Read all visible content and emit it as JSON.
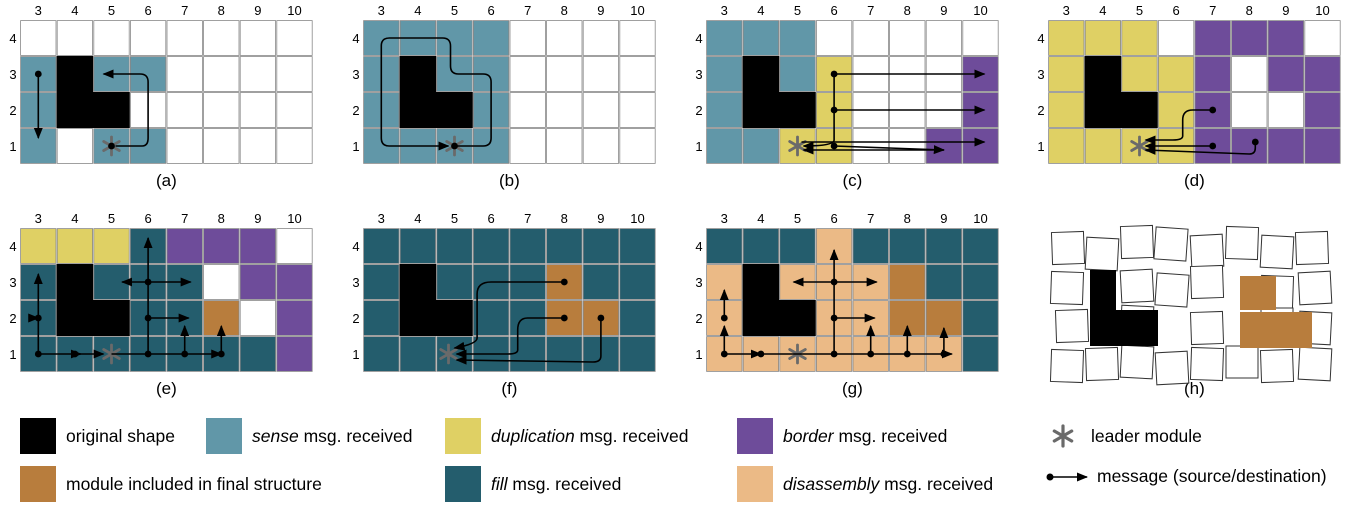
{
  "colors": {
    "original": "#000000",
    "sense": "#6197A8",
    "duplication": "#DFD064",
    "border": "#6E4C9A",
    "final": "#B87D3D",
    "fill": "#245D6D",
    "disassembly": "#EBBA86",
    "empty": "#FFFFFF",
    "leader": "#6a6a6a"
  },
  "col_labels": [
    "3",
    "4",
    "5",
    "6",
    "7",
    "8",
    "9",
    "10"
  ],
  "row_labels": [
    "4",
    "3",
    "2",
    "1"
  ],
  "panels": [
    {
      "caption": "(a)",
      "grid": [
        "WWWWWWWW",
        "SBSSWWWW",
        "SBBWWWWW",
        "SWSSWWWW"
      ]
    },
    {
      "caption": "(b)",
      "grid": [
        "SSSSWWWW",
        "SBSSWWWW",
        "SBBSWWWW",
        "SSSSWWWW"
      ]
    },
    {
      "caption": "(c)",
      "grid": [
        "SSSWWWWW",
        "SBSDWWWP",
        "SBBDWWWP",
        "SSDDWWPP"
      ]
    },
    {
      "caption": "(d)",
      "grid": [
        "DDDWPPPW",
        "DBDDPWPP",
        "DBBDPWWP",
        "DDDDPPPP"
      ]
    },
    {
      "caption": "(e)",
      "grid": [
        "DDDFPPPW",
        "FBFFFWPP",
        "FBBFFOWP",
        "FFFFFFFP"
      ]
    },
    {
      "caption": "(f)",
      "grid": [
        "FFFFFFFF",
        "FBFFFOFF",
        "FBBFFOOF",
        "FFFFFFFF"
      ]
    },
    {
      "caption": "(g)",
      "grid": [
        "FFFXFFFF",
        "XBXXXOFF",
        "XBBXXOOF",
        "XXXXXXXF"
      ]
    },
    {
      "caption": "(h)"
    }
  ],
  "legend": [
    {
      "color_key": "original",
      "label": "original shape",
      "emph": ""
    },
    {
      "color_key": "sense",
      "label": " msg. received",
      "emph": "sense"
    },
    {
      "color_key": "duplication",
      "label": " msg. received",
      "emph": "duplication"
    },
    {
      "color_key": "border",
      "label": " msg. received",
      "emph": "border"
    },
    {
      "icon": "leader-asterisk-icon",
      "label": "leader module",
      "emph": ""
    },
    {
      "color_key": "final",
      "label": "module included in final structure",
      "emph": ""
    },
    {
      "color_key": "fill",
      "label": " msg. received",
      "emph": "fill"
    },
    {
      "color_key": "disassembly",
      "label": " msg. received",
      "emph": "disassembly"
    },
    {
      "icon": "message-arrow-icon",
      "label": "message (source/destination)",
      "emph": ""
    }
  ]
}
